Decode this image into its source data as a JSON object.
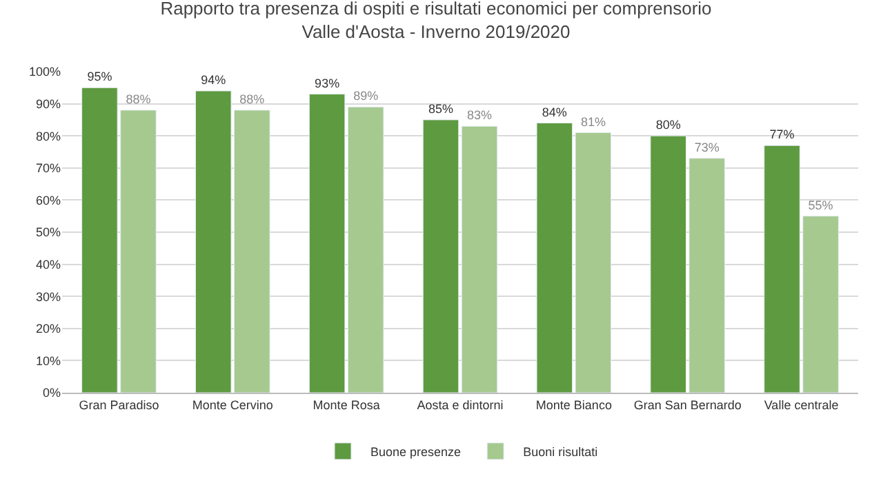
{
  "chart_data": {
    "type": "bar",
    "title": "Rapporto tra presenza di ospiti e risultati economici per comprensorio",
    "subtitle": "Valle d'Aosta - Inverno 2019/2020",
    "categories": [
      "Gran Paradiso",
      "Monte Cervino",
      "Monte Rosa",
      "Aosta e dintorni",
      "Monte Bianco",
      "Gran San Bernardo",
      "Valle centrale"
    ],
    "series": [
      {
        "name": "Buone presenze",
        "color": "#5e9a3f",
        "values": [
          95,
          94,
          93,
          85,
          84,
          80,
          77
        ],
        "value_labels": [
          "95%",
          "94%",
          "93%",
          "85%",
          "84%",
          "80%",
          "77%"
        ]
      },
      {
        "name": "Buoni risultati",
        "color": "#a6c98f",
        "values": [
          88,
          88,
          89,
          83,
          81,
          73,
          55
        ],
        "value_labels": [
          "88%",
          "88%",
          "89%",
          "83%",
          "81%",
          "73%",
          "55%"
        ]
      }
    ],
    "ylim": [
      0,
      100
    ],
    "yticks": [
      {
        "value": 0,
        "label": "0%"
      },
      {
        "value": 10,
        "label": "10%"
      },
      {
        "value": 20,
        "label": "20%"
      },
      {
        "value": 30,
        "label": "30%"
      },
      {
        "value": 40,
        "label": "40%"
      },
      {
        "value": 50,
        "label": "50%"
      },
      {
        "value": 60,
        "label": "60%"
      },
      {
        "value": 70,
        "label": "70%"
      },
      {
        "value": 80,
        "label": "80%"
      },
      {
        "value": 90,
        "label": "90%"
      },
      {
        "value": 100,
        "label": "100%"
      }
    ],
    "grid": "y",
    "legend": "bottom"
  }
}
